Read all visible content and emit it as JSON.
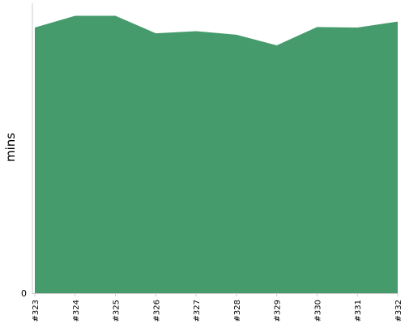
{
  "chart_data": {
    "type": "area",
    "title": "",
    "xlabel": "",
    "ylabel": "mins",
    "x": [
      "#323",
      "#324",
      "#325",
      "#326",
      "#327",
      "#328",
      "#329",
      "#330",
      "#331",
      "#332"
    ],
    "values": [
      97.1,
      101.4,
      101.4,
      95.0,
      95.8,
      94.5,
      90.6,
      97.3,
      97.1,
      99.3
    ],
    "ylim": [
      0,
      106
    ],
    "y_tick_labels": [
      "0"
    ],
    "grid": false,
    "legend": "none",
    "colors": {
      "fill": "#459b6c",
      "axis": "#cccccc",
      "text": "#000000"
    }
  }
}
